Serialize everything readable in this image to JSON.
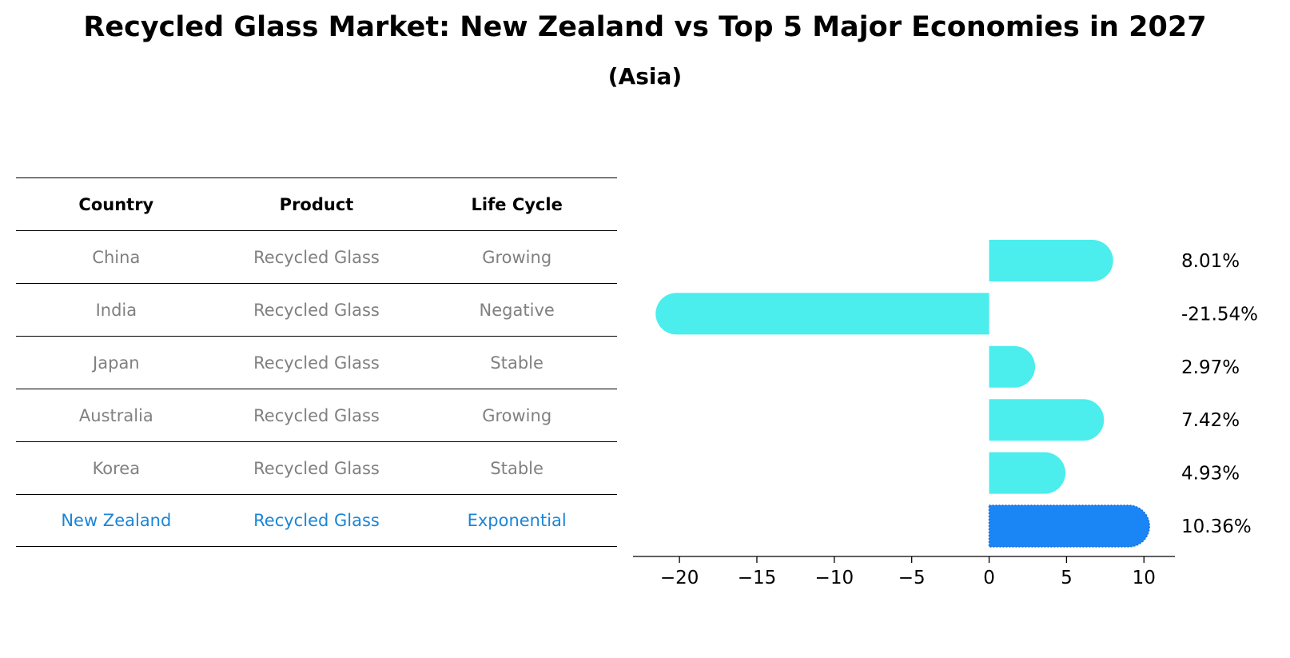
{
  "chart_data": {
    "type": "bar",
    "orientation": "horizontal",
    "title": "Recycled Glass Market: New Zealand vs Top 5 Major Economies in 2027",
    "subtitle": "(Asia)",
    "categories": [
      "China",
      "India",
      "Japan",
      "Australia",
      "Korea",
      "New Zealand"
    ],
    "values": [
      8.01,
      -21.54,
      2.97,
      7.42,
      4.93,
      10.36
    ],
    "value_labels": [
      "8.01%",
      "-21.54%",
      "2.97%",
      "7.42%",
      "4.93%",
      "10.36%"
    ],
    "xlim": [
      -23,
      12
    ],
    "xticks": [
      -20,
      -15,
      -10,
      -5,
      0,
      5,
      10
    ],
    "xtick_labels": [
      "−20",
      "−15",
      "−10",
      "−5",
      "0",
      "5",
      "10"
    ],
    "grid": false,
    "colors": {
      "default": "#4beded",
      "highlight": "#1a85f5"
    },
    "highlight_category": "New Zealand"
  },
  "table": {
    "headers": [
      "Country",
      "Product",
      "Life Cycle"
    ],
    "rows": [
      {
        "country": "China",
        "product": "Recycled Glass",
        "life_cycle": "Growing"
      },
      {
        "country": "India",
        "product": "Recycled Glass",
        "life_cycle": "Negative"
      },
      {
        "country": "Japan",
        "product": "Recycled Glass",
        "life_cycle": "Stable"
      },
      {
        "country": "Australia",
        "product": "Recycled Glass",
        "life_cycle": "Growing"
      },
      {
        "country": "Korea",
        "product": "Recycled Glass",
        "life_cycle": "Stable"
      },
      {
        "country": "New Zealand",
        "product": "Recycled Glass",
        "life_cycle": "Exponential"
      }
    ],
    "highlight_row_color": "#1a85d6"
  }
}
